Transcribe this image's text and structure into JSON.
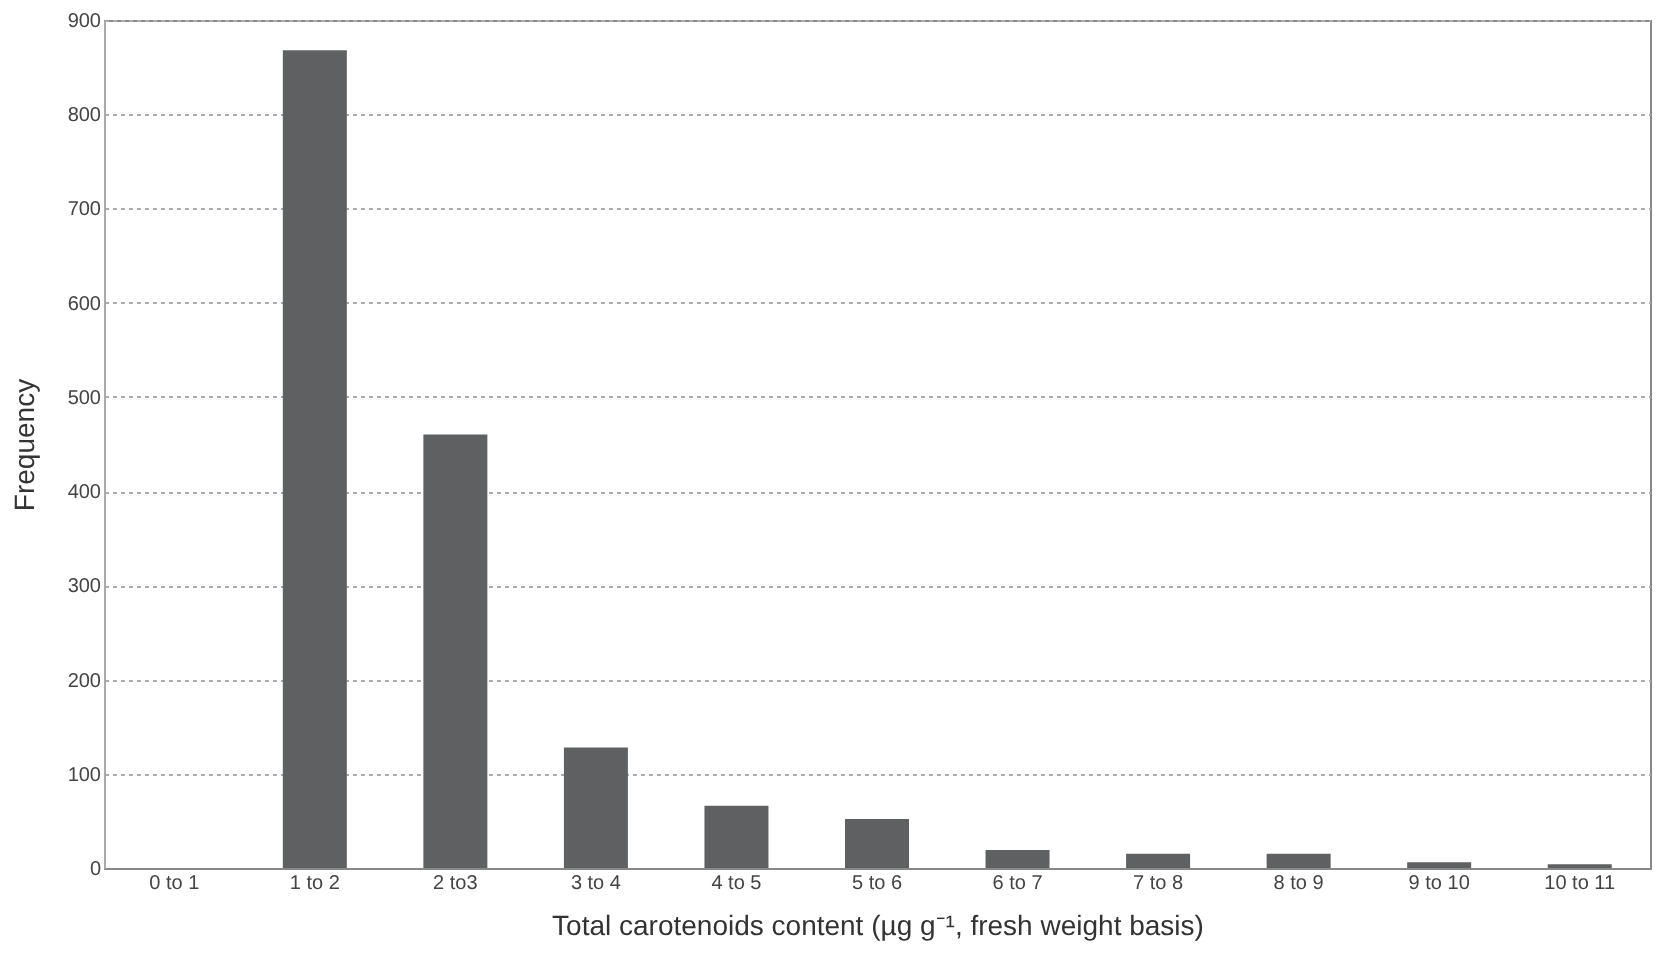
{
  "chart_data": {
    "type": "bar",
    "categories": [
      "0 to 1",
      "1 to 2",
      "2 to3",
      "3 to 4",
      "4 to 5",
      "5 to 6",
      "6 to 7",
      "7 to 8",
      "8 to 9",
      "9 to 10",
      "10 to 11"
    ],
    "values": [
      0,
      868,
      460,
      128,
      66,
      52,
      19,
      15,
      15,
      6,
      4
    ],
    "color": "#5f6062",
    "xlabel": "Total carotenoids content (µg g⁻¹, fresh weight basis)",
    "ylabel": "Frequency",
    "ylim": [
      0,
      900
    ],
    "yticks": [
      0,
      100,
      200,
      300,
      400,
      500,
      600,
      700,
      800,
      900
    ],
    "grid": "y"
  }
}
